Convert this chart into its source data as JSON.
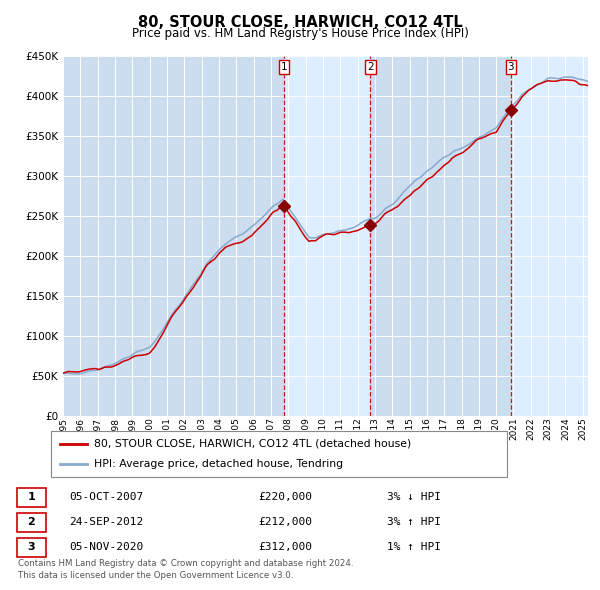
{
  "title": "80, STOUR CLOSE, HARWICH, CO12 4TL",
  "subtitle": "Price paid vs. HM Land Registry's House Price Index (HPI)",
  "legend_entry1": "80, STOUR CLOSE, HARWICH, CO12 4TL (detached house)",
  "legend_entry2": "HPI: Average price, detached house, Tendring",
  "footnote1": "Contains HM Land Registry data © Crown copyright and database right 2024.",
  "footnote2": "This data is licensed under the Open Government Licence v3.0.",
  "table": [
    {
      "num": "1",
      "date": "05-OCT-2007",
      "price": "£220,000",
      "pct": "3%",
      "dir": "↓",
      "hpi": "HPI"
    },
    {
      "num": "2",
      "date": "24-SEP-2012",
      "price": "£212,000",
      "pct": "3%",
      "dir": "↑",
      "hpi": "HPI"
    },
    {
      "num": "3",
      "date": "05-NOV-2020",
      "price": "£312,000",
      "pct": "1%",
      "dir": "↑",
      "hpi": "HPI"
    }
  ],
  "sale_dates": [
    2007.76,
    2012.73,
    2020.85
  ],
  "sale_prices": [
    220000,
    212000,
    312000
  ],
  "color_red": "#cc0000",
  "color_blue": "#88aacc",
  "color_vline": "#cc0000",
  "bg_plot": "#ccddf0",
  "bg_shade": "#ddeeff",
  "ylim": [
    0,
    450000
  ],
  "xlim_start": 1995.0,
  "xlim_end": 2025.3
}
